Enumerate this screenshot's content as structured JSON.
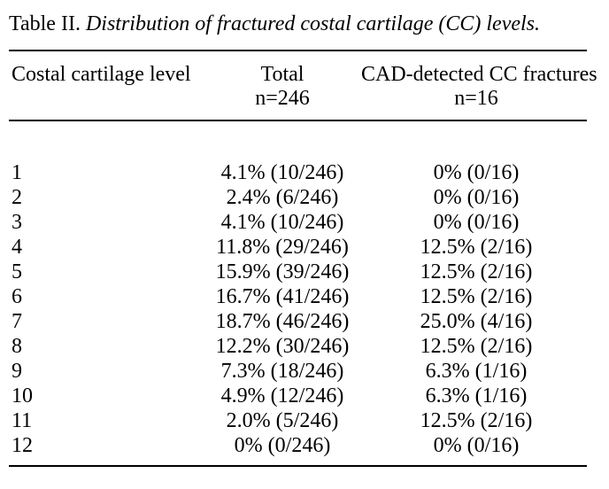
{
  "page": {
    "background_color": "#ffffff",
    "text_color": "#000000",
    "rule_color": "#000000"
  },
  "caption": {
    "label": "Table II.",
    "title": "Distribution of fractured costal cartilage (CC) levels."
  },
  "table": {
    "header": {
      "level_label": "Costal cartilage level",
      "total_label": "Total",
      "total_n": "n=246",
      "cad_label": "CAD-detected CC fractures",
      "cad_n": "n=16"
    },
    "rows": [
      {
        "level": "1",
        "total": "4.1% (10/246)",
        "cad": "0% (0/16)"
      },
      {
        "level": "2",
        "total": "2.4% (6/246)",
        "cad": "0% (0/16)"
      },
      {
        "level": "3",
        "total": "4.1% (10/246)",
        "cad": "0% (0/16)"
      },
      {
        "level": "4",
        "total": "11.8% (29/246)",
        "cad": "12.5% (2/16)"
      },
      {
        "level": "5",
        "total": "15.9% (39/246)",
        "cad": "12.5% (2/16)"
      },
      {
        "level": "6",
        "total": "16.7% (41/246)",
        "cad": "12.5% (2/16)"
      },
      {
        "level": "7",
        "total": "18.7% (46/246)",
        "cad": "25.0% (4/16)"
      },
      {
        "level": "8",
        "total": "12.2% (30/246)",
        "cad": "12.5% (2/16)"
      },
      {
        "level": "9",
        "total": "7.3% (18/246)",
        "cad": "6.3% (1/16)"
      },
      {
        "level": "10",
        "total": "4.9% (12/246)",
        "cad": "6.3% (1/16)"
      },
      {
        "level": "11",
        "total": "2.0% (5/246)",
        "cad": "12.5% (2/16)"
      },
      {
        "level": "12",
        "total": "0% (0/246)",
        "cad": "0% (0/16)"
      }
    ]
  }
}
